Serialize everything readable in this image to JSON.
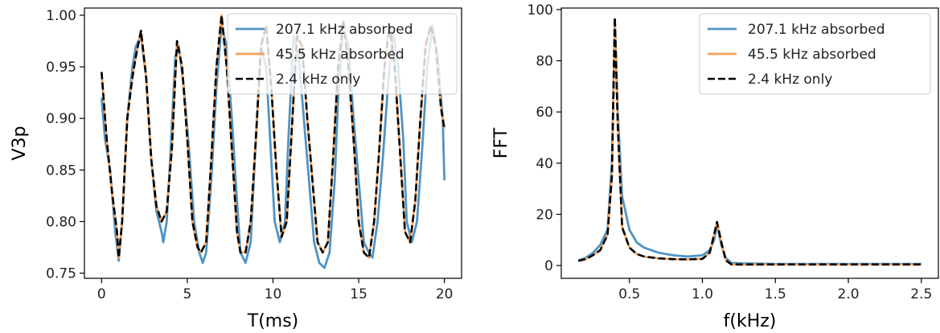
{
  "chart_data": [
    {
      "type": "line",
      "xlabel": "T(ms)",
      "ylabel": "V3p",
      "xlim": [
        -1,
        21
      ],
      "ylim": [
        0.745,
        1.007
      ],
      "xticks": [
        0,
        5,
        10,
        15,
        20
      ],
      "xtick_labels": [
        "0",
        "5",
        "10",
        "15",
        "20"
      ],
      "yticks": [
        0.75,
        0.8,
        0.85,
        0.9,
        0.95,
        1.0
      ],
      "ytick_labels": [
        "0.75",
        "0.80",
        "0.85",
        "0.90",
        "0.95",
        "1.00"
      ],
      "legend_position": "top-right",
      "grid": false,
      "series": [
        {
          "name": "207.1 kHz absorbed",
          "color": "#4f94c4",
          "style": "solid",
          "x": [
            0,
            0.2,
            0.5,
            0.8,
            1.0,
            1.2,
            1.5,
            1.8,
            2.0,
            2.3,
            2.6,
            2.9,
            3.2,
            3.5,
            3.6,
            3.8,
            4.0,
            4.3,
            4.5,
            4.8,
            5.1,
            5.4,
            5.7,
            5.9,
            6.1,
            6.4,
            6.7,
            7.0,
            7.3,
            7.6,
            7.9,
            8.1,
            8.4,
            8.7,
            9.0,
            9.3,
            9.6,
            9.9,
            10.1,
            10.4,
            10.7,
            10.9,
            11.2,
            11.5,
            11.8,
            12.1,
            12.4,
            12.7,
            13.0,
            13.3,
            13.6,
            13.8,
            14.1,
            14.4,
            14.7,
            15.0,
            15.3,
            15.6,
            15.8,
            16.1,
            16.4,
            16.7,
            17.0,
            17.3,
            17.6,
            17.8,
            18.1,
            18.4,
            18.7,
            19.0,
            19.3,
            19.6,
            19.9,
            20
          ],
          "y": [
            0.92,
            0.88,
            0.85,
            0.79,
            0.762,
            0.8,
            0.9,
            0.95,
            0.97,
            0.98,
            0.94,
            0.86,
            0.81,
            0.79,
            0.78,
            0.8,
            0.86,
            0.96,
            0.97,
            0.93,
            0.87,
            0.8,
            0.77,
            0.76,
            0.77,
            0.84,
            0.93,
            0.99,
            0.97,
            0.9,
            0.82,
            0.77,
            0.76,
            0.78,
            0.88,
            0.97,
            0.95,
            0.86,
            0.8,
            0.78,
            0.8,
            0.88,
            0.98,
            0.96,
            0.9,
            0.84,
            0.78,
            0.76,
            0.755,
            0.77,
            0.84,
            0.92,
            0.99,
            0.97,
            0.9,
            0.84,
            0.78,
            0.77,
            0.765,
            0.8,
            0.86,
            0.93,
            0.985,
            0.95,
            0.88,
            0.8,
            0.78,
            0.8,
            0.87,
            0.95,
            0.99,
            0.96,
            0.9,
            0.84
          ]
        },
        {
          "name": "45.5 kHz absorbed",
          "color": "#f5a05a",
          "style": "solid",
          "x": [
            0,
            0.3,
            0.6,
            0.9,
            1.0,
            1.2,
            1.5,
            1.8,
            2.0,
            2.3,
            2.6,
            2.9,
            3.2,
            3.5,
            3.8,
            4.1,
            4.4,
            4.7,
            5.0,
            5.3,
            5.6,
            5.8,
            6.1,
            6.4,
            6.7,
            7.0,
            7.3,
            7.6,
            7.9,
            8.1,
            8.4,
            8.7,
            9.0,
            9.3,
            9.6,
            9.9,
            10.2,
            10.5,
            10.8,
            11.1,
            11.4,
            11.7,
            12.0,
            12.3,
            12.6,
            12.9,
            13.2,
            13.5,
            13.8,
            14.1,
            14.4,
            14.7,
            15.0,
            15.3,
            15.6,
            15.9,
            16.2,
            16.5,
            16.8,
            17.1,
            17.4,
            17.7,
            18.0,
            18.3,
            18.6,
            18.9,
            19.2,
            19.5,
            19.8,
            20
          ],
          "y": [
            0.945,
            0.88,
            0.83,
            0.79,
            0.765,
            0.8,
            0.9,
            0.94,
            0.96,
            0.985,
            0.94,
            0.86,
            0.815,
            0.8,
            0.81,
            0.87,
            0.975,
            0.95,
            0.88,
            0.8,
            0.775,
            0.77,
            0.78,
            0.86,
            0.95,
            1.0,
            0.95,
            0.87,
            0.79,
            0.77,
            0.77,
            0.8,
            0.88,
            0.97,
            0.99,
            0.93,
            0.85,
            0.785,
            0.8,
            0.89,
            0.98,
            0.97,
            0.9,
            0.84,
            0.78,
            0.77,
            0.78,
            0.86,
            0.95,
            0.995,
            0.95,
            0.88,
            0.8,
            0.77,
            0.765,
            0.8,
            0.87,
            0.95,
            0.99,
            0.95,
            0.87,
            0.79,
            0.78,
            0.82,
            0.9,
            0.97,
            0.99,
            0.97,
            0.91,
            0.89
          ]
        },
        {
          "name": "2.4 kHz only",
          "color": "#000000",
          "style": "dashed",
          "x": [
            0,
            0.3,
            0.6,
            0.9,
            1.0,
            1.2,
            1.5,
            1.8,
            2.0,
            2.3,
            2.6,
            2.9,
            3.2,
            3.5,
            3.8,
            4.1,
            4.4,
            4.7,
            5.0,
            5.3,
            5.6,
            5.8,
            6.1,
            6.4,
            6.7,
            7.0,
            7.3,
            7.6,
            7.9,
            8.1,
            8.4,
            8.7,
            9.0,
            9.3,
            9.6,
            9.9,
            10.2,
            10.5,
            10.8,
            11.1,
            11.4,
            11.7,
            12.0,
            12.3,
            12.6,
            12.9,
            13.2,
            13.5,
            13.8,
            14.1,
            14.4,
            14.7,
            15.0,
            15.3,
            15.6,
            15.9,
            16.2,
            16.5,
            16.8,
            17.1,
            17.4,
            17.7,
            18.0,
            18.3,
            18.6,
            18.9,
            19.2,
            19.5,
            19.8,
            20
          ],
          "y": [
            0.945,
            0.88,
            0.83,
            0.79,
            0.765,
            0.8,
            0.9,
            0.94,
            0.96,
            0.985,
            0.94,
            0.86,
            0.815,
            0.8,
            0.81,
            0.87,
            0.975,
            0.95,
            0.88,
            0.8,
            0.775,
            0.77,
            0.78,
            0.86,
            0.95,
            1.0,
            0.95,
            0.87,
            0.79,
            0.77,
            0.77,
            0.8,
            0.88,
            0.97,
            0.99,
            0.93,
            0.85,
            0.785,
            0.8,
            0.89,
            0.98,
            0.97,
            0.9,
            0.84,
            0.78,
            0.77,
            0.78,
            0.86,
            0.95,
            0.995,
            0.95,
            0.88,
            0.8,
            0.77,
            0.765,
            0.8,
            0.87,
            0.95,
            0.99,
            0.95,
            0.87,
            0.79,
            0.78,
            0.82,
            0.9,
            0.97,
            0.99,
            0.97,
            0.91,
            0.89
          ]
        }
      ]
    },
    {
      "type": "line",
      "xlabel": "f(kHz)",
      "ylabel": "FFT",
      "xlim": [
        0.033,
        2.617
      ],
      "ylim": [
        -5,
        100.6
      ],
      "xticks": [
        0.5,
        1.0,
        1.5,
        2.0,
        2.5
      ],
      "xtick_labels": [
        "0.5",
        "1.0",
        "1.5",
        "2.0",
        "2.5"
      ],
      "yticks": [
        0,
        20,
        40,
        60,
        80,
        100
      ],
      "ytick_labels": [
        "0",
        "20",
        "40",
        "60",
        "80",
        "100"
      ],
      "legend_position": "top-right",
      "grid": false,
      "series": [
        {
          "name": "207.1 kHz absorbed",
          "color": "#4f94c4",
          "style": "solid",
          "x": [
            0.15,
            0.2,
            0.25,
            0.3,
            0.35,
            0.38,
            0.4,
            0.42,
            0.45,
            0.5,
            0.55,
            0.6,
            0.7,
            0.8,
            0.9,
            1.0,
            1.05,
            1.08,
            1.1,
            1.13,
            1.16,
            1.2,
            1.3,
            1.5,
            2.0,
            2.5
          ],
          "y": [
            2,
            3,
            5,
            8,
            14,
            40,
            95,
            60,
            27,
            14,
            9,
            7,
            5,
            4,
            3.5,
            4,
            6,
            10,
            16,
            8,
            3,
            1,
            0.8,
            0.6,
            0.6,
            0.6
          ]
        },
        {
          "name": "45.5 kHz absorbed",
          "color": "#f5a05a",
          "style": "solid",
          "x": [
            0.15,
            0.2,
            0.25,
            0.3,
            0.35,
            0.38,
            0.4,
            0.42,
            0.45,
            0.5,
            0.55,
            0.6,
            0.7,
            0.8,
            0.9,
            1.0,
            1.05,
            1.08,
            1.1,
            1.13,
            1.16,
            1.2,
            1.3,
            1.5,
            2.0,
            2.5
          ],
          "y": [
            1.8,
            2.5,
            4,
            6,
            12,
            35,
            94,
            55,
            15,
            7,
            4.5,
            3.5,
            2.8,
            2.5,
            2.4,
            2.6,
            5,
            12,
            17,
            9,
            2,
            0.4,
            0.4,
            0.4,
            0.4,
            0.4
          ]
        },
        {
          "name": "2.4 kHz only",
          "color": "#000000",
          "style": "dashed",
          "x": [
            0.15,
            0.2,
            0.25,
            0.3,
            0.35,
            0.38,
            0.4,
            0.42,
            0.45,
            0.5,
            0.55,
            0.6,
            0.7,
            0.8,
            0.9,
            1.0,
            1.05,
            1.08,
            1.1,
            1.13,
            1.16,
            1.2,
            1.3,
            1.5,
            2.0,
            2.5
          ],
          "y": [
            1.8,
            2.5,
            4,
            6,
            12,
            35,
            97,
            55,
            15,
            7,
            4.5,
            3.5,
            2.8,
            2.5,
            2.4,
            2.6,
            5,
            12,
            17,
            9,
            2,
            0.4,
            0.4,
            0.4,
            0.4,
            0.4
          ]
        }
      ]
    }
  ]
}
